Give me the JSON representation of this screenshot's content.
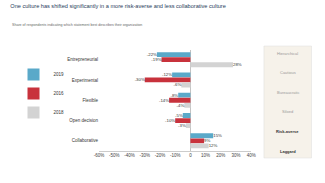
{
  "chart_data": {
    "type": "bar",
    "orientation": "horizontal",
    "title": "One culture has shifted significantly in a more risk-averse and less collaborative culture",
    "subtitle": "Share of respondents indicating which statement best describes their organization",
    "categories": [
      "Entrepreneurial",
      "Experimental",
      "Flexible",
      "Open decision",
      "Collaborative"
    ],
    "series": [
      {
        "name": "2019",
        "color": "#5aa9c9",
        "values": [
          -22,
          -12,
          -8,
          -5,
          15
        ],
        "value_labels": [
          "-22%",
          "-12%",
          "-8%",
          "-5%",
          "15%"
        ]
      },
      {
        "name": "2016",
        "color": "#c8323c",
        "values": [
          -19,
          -30,
          -14,
          -10,
          9
        ],
        "value_labels": [
          "-19%",
          "-30%",
          "-14%",
          "-10%",
          "9%"
        ]
      },
      {
        "name": "2018",
        "color": "#d3d3d3",
        "values": [
          28,
          -6,
          -4,
          -3,
          12
        ],
        "value_labels": [
          "28%",
          "-6%",
          "-4%",
          "-3%",
          "12%"
        ]
      }
    ],
    "xlim": [
      -60,
      40
    ],
    "xticks": [
      {
        "value": -60,
        "label": "-60%"
      },
      {
        "value": -50,
        "label": "-50%"
      },
      {
        "value": -40,
        "label": "-40%"
      },
      {
        "value": -30,
        "label": "-30%"
      },
      {
        "value": -20,
        "label": "-20%"
      },
      {
        "value": -10,
        "label": "-10%"
      },
      0,
      {
        "value": 10,
        "label": "10%"
      },
      {
        "value": 20,
        "label": "20%"
      },
      {
        "value": 30,
        "label": "30%"
      },
      {
        "value": 40,
        "label": "40%"
      }
    ],
    "grid": false,
    "legend": "left",
    "data_labels": true,
    "panel_labels": [
      "Hierarchical",
      "Cautious",
      "Bureaucratic",
      "Siloed",
      "Risk-averse",
      "Laggard"
    ]
  }
}
